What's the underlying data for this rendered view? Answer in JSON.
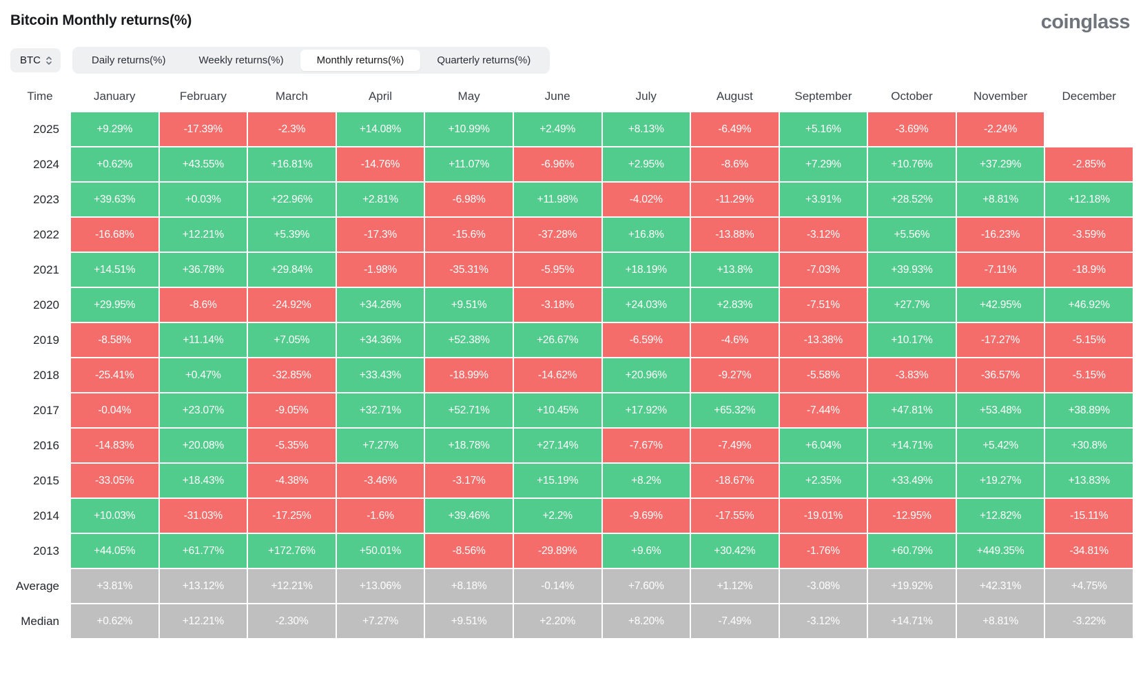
{
  "header": {
    "title": "Bitcoin Monthly returns(%)",
    "logo": "coinglass"
  },
  "toolbar": {
    "coin_selector": {
      "value": "BTC",
      "icon": "updown-chevron"
    },
    "tabs": [
      {
        "label": "Daily returns(%)",
        "active": false
      },
      {
        "label": "Weekly returns(%)",
        "active": false
      },
      {
        "label": "Monthly returns(%)",
        "active": true
      },
      {
        "label": "Quarterly returns(%)",
        "active": false
      }
    ]
  },
  "colors": {
    "positive": "#52cc8d",
    "negative": "#f56d6b",
    "summary": "#bfbfbf",
    "toolbar_bg": "#eef0f2",
    "logo_gray": "#6f737b"
  },
  "chart_data": {
    "type": "heatmap",
    "title": "Bitcoin Monthly returns(%)",
    "legend_rule": "green = positive return, red = negative return, gray = summary rows",
    "columns": [
      "Time",
      "January",
      "February",
      "March",
      "April",
      "May",
      "June",
      "July",
      "August",
      "September",
      "October",
      "November",
      "December"
    ],
    "rows": [
      {
        "label": "2025",
        "summary": false,
        "values": [
          "+9.29%",
          "-17.39%",
          "-2.3%",
          "+14.08%",
          "+10.99%",
          "+2.49%",
          "+8.13%",
          "-6.49%",
          "+5.16%",
          "-3.69%",
          "-2.24%",
          ""
        ]
      },
      {
        "label": "2024",
        "summary": false,
        "values": [
          "+0.62%",
          "+43.55%",
          "+16.81%",
          "-14.76%",
          "+11.07%",
          "-6.96%",
          "+2.95%",
          "-8.6%",
          "+7.29%",
          "+10.76%",
          "+37.29%",
          "-2.85%"
        ]
      },
      {
        "label": "2023",
        "summary": false,
        "values": [
          "+39.63%",
          "+0.03%",
          "+22.96%",
          "+2.81%",
          "-6.98%",
          "+11.98%",
          "-4.02%",
          "-11.29%",
          "+3.91%",
          "+28.52%",
          "+8.81%",
          "+12.18%"
        ]
      },
      {
        "label": "2022",
        "summary": false,
        "values": [
          "-16.68%",
          "+12.21%",
          "+5.39%",
          "-17.3%",
          "-15.6%",
          "-37.28%",
          "+16.8%",
          "-13.88%",
          "-3.12%",
          "+5.56%",
          "-16.23%",
          "-3.59%"
        ]
      },
      {
        "label": "2021",
        "summary": false,
        "values": [
          "+14.51%",
          "+36.78%",
          "+29.84%",
          "-1.98%",
          "-35.31%",
          "-5.95%",
          "+18.19%",
          "+13.8%",
          "-7.03%",
          "+39.93%",
          "-7.11%",
          "-18.9%"
        ]
      },
      {
        "label": "2020",
        "summary": false,
        "values": [
          "+29.95%",
          "-8.6%",
          "-24.92%",
          "+34.26%",
          "+9.51%",
          "-3.18%",
          "+24.03%",
          "+2.83%",
          "-7.51%",
          "+27.7%",
          "+42.95%",
          "+46.92%"
        ]
      },
      {
        "label": "2019",
        "summary": false,
        "values": [
          "-8.58%",
          "+11.14%",
          "+7.05%",
          "+34.36%",
          "+52.38%",
          "+26.67%",
          "-6.59%",
          "-4.6%",
          "-13.38%",
          "+10.17%",
          "-17.27%",
          "-5.15%"
        ]
      },
      {
        "label": "2018",
        "summary": false,
        "values": [
          "-25.41%",
          "+0.47%",
          "-32.85%",
          "+33.43%",
          "-18.99%",
          "-14.62%",
          "+20.96%",
          "-9.27%",
          "-5.58%",
          "-3.83%",
          "-36.57%",
          "-5.15%"
        ]
      },
      {
        "label": "2017",
        "summary": false,
        "values": [
          "-0.04%",
          "+23.07%",
          "-9.05%",
          "+32.71%",
          "+52.71%",
          "+10.45%",
          "+17.92%",
          "+65.32%",
          "-7.44%",
          "+47.81%",
          "+53.48%",
          "+38.89%"
        ]
      },
      {
        "label": "2016",
        "summary": false,
        "values": [
          "-14.83%",
          "+20.08%",
          "-5.35%",
          "+7.27%",
          "+18.78%",
          "+27.14%",
          "-7.67%",
          "-7.49%",
          "+6.04%",
          "+14.71%",
          "+5.42%",
          "+30.8%"
        ]
      },
      {
        "label": "2015",
        "summary": false,
        "values": [
          "-33.05%",
          "+18.43%",
          "-4.38%",
          "-3.46%",
          "-3.17%",
          "+15.19%",
          "+8.2%",
          "-18.67%",
          "+2.35%",
          "+33.49%",
          "+19.27%",
          "+13.83%"
        ]
      },
      {
        "label": "2014",
        "summary": false,
        "values": [
          "+10.03%",
          "-31.03%",
          "-17.25%",
          "-1.6%",
          "+39.46%",
          "+2.2%",
          "-9.69%",
          "-17.55%",
          "-19.01%",
          "-12.95%",
          "+12.82%",
          "-15.11%"
        ]
      },
      {
        "label": "2013",
        "summary": false,
        "values": [
          "+44.05%",
          "+61.77%",
          "+172.76%",
          "+50.01%",
          "-8.56%",
          "-29.89%",
          "+9.6%",
          "+30.42%",
          "-1.76%",
          "+60.79%",
          "+449.35%",
          "-34.81%"
        ]
      },
      {
        "label": "Average",
        "summary": true,
        "values": [
          "+3.81%",
          "+13.12%",
          "+12.21%",
          "+13.06%",
          "+8.18%",
          "-0.14%",
          "+7.60%",
          "+1.12%",
          "-3.08%",
          "+19.92%",
          "+42.31%",
          "+4.75%"
        ]
      },
      {
        "label": "Median",
        "summary": true,
        "values": [
          "+0.62%",
          "+12.21%",
          "-2.30%",
          "+7.27%",
          "+9.51%",
          "+2.20%",
          "+8.20%",
          "-7.49%",
          "-3.12%",
          "+14.71%",
          "+8.81%",
          "-3.22%"
        ]
      }
    ]
  }
}
